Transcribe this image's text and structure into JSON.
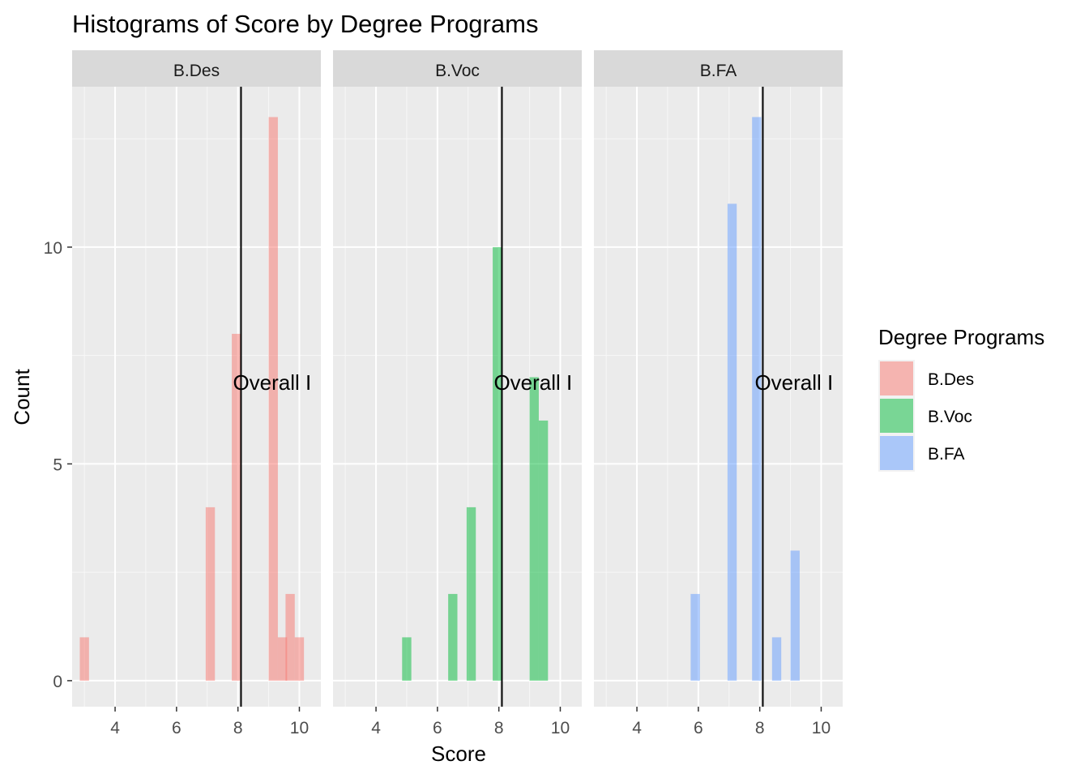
{
  "chart_data": {
    "type": "bar",
    "title": "Histograms of Score by Degree Programs",
    "xlabel": "Score",
    "ylabel": "Count",
    "xlim": [
      2.6,
      10.7
    ],
    "ylim": [
      -0.6,
      13.7
    ],
    "x_ticks": [
      4,
      6,
      8,
      10
    ],
    "y_ticks": [
      0,
      5,
      10
    ],
    "grid": true,
    "legend_position": "right",
    "legend_title": "Degree Programs",
    "bin_width": 0.3,
    "vline": {
      "x": 8.1,
      "label": "Overall I",
      "label_y": 6.9
    },
    "facets": [
      {
        "name": "B.Des",
        "color": "#F8766D",
        "bars": [
          {
            "x": 3.0,
            "count": 1
          },
          {
            "x": 7.1,
            "count": 4
          },
          {
            "x": 7.95,
            "count": 8
          },
          {
            "x": 9.15,
            "count": 13
          },
          {
            "x": 9.45,
            "count": 1
          },
          {
            "x": 9.7,
            "count": 2
          },
          {
            "x": 10.0,
            "count": 1
          }
        ]
      },
      {
        "name": "B.Voc",
        "color": "#00BA38",
        "bars": [
          {
            "x": 5.0,
            "count": 1
          },
          {
            "x": 6.5,
            "count": 2
          },
          {
            "x": 7.1,
            "count": 4
          },
          {
            "x": 7.95,
            "count": 10
          },
          {
            "x": 9.15,
            "count": 7
          },
          {
            "x": 9.45,
            "count": 6
          }
        ]
      },
      {
        "name": "B.FA",
        "color": "#619CFF",
        "bars": [
          {
            "x": 5.9,
            "count": 2
          },
          {
            "x": 7.1,
            "count": 11
          },
          {
            "x": 7.9,
            "count": 13
          },
          {
            "x": 8.55,
            "count": 1
          },
          {
            "x": 9.15,
            "count": 3
          }
        ]
      }
    ]
  }
}
